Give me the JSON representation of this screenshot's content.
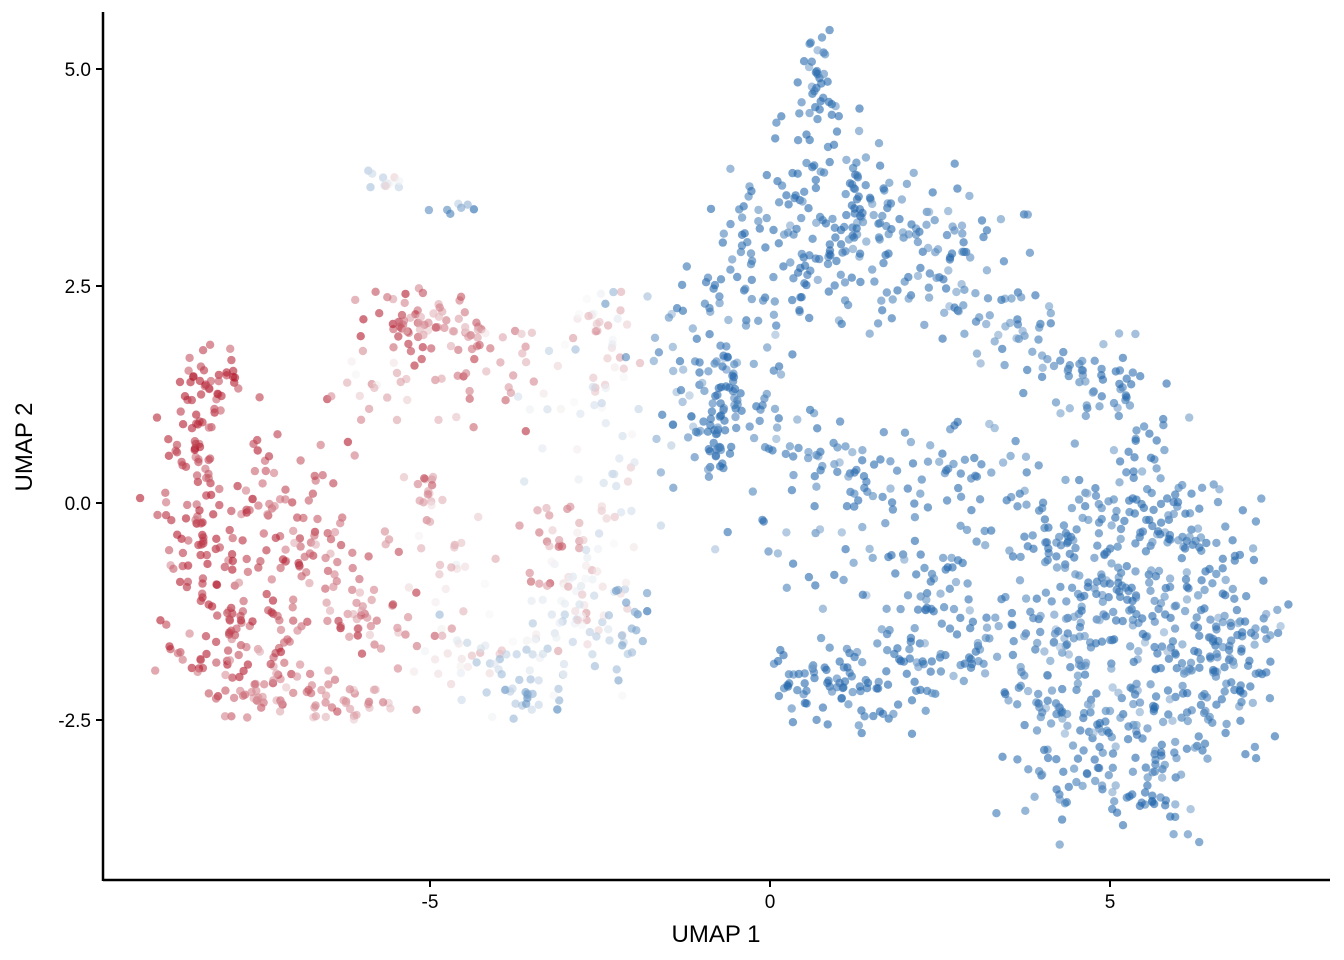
{
  "chart_data": {
    "type": "scatter",
    "title": "",
    "xlabel": "UMAP 1",
    "ylabel": "UMAP 2",
    "xlim": [
      -9.8,
      8.2
    ],
    "ylim": [
      -4.35,
      5.65
    ],
    "x_ticks": [
      -5,
      0,
      5
    ],
    "x_tick_labels": [
      "-5",
      "0",
      "5"
    ],
    "y_ticks": [
      5.0,
      2.5,
      0.0,
      -2.5
    ],
    "y_tick_labels": [
      "5.0",
      "2.5",
      "0.0",
      "-2.5"
    ],
    "grid": false,
    "legend": "none",
    "point_alpha": 0.6,
    "color_scale": {
      "low_color": "#b2182b",
      "mid_color": "#f7f7f7",
      "high_color": "#2166ac",
      "description": "diverging red-white-blue gradient along UMAP 1"
    },
    "clusters": [
      {
        "cx": -8.2,
        "cy": 1.4,
        "sx": 0.25,
        "sy": 0.25,
        "n": 40,
        "color": 0.05
      },
      {
        "cx": -8.5,
        "cy": 0.7,
        "sx": 0.2,
        "sy": 0.25,
        "n": 30,
        "color": 0.05
      },
      {
        "cx": -8.4,
        "cy": -0.5,
        "sx": 0.35,
        "sy": 0.55,
        "n": 70,
        "color": 0.08
      },
      {
        "cx": -7.8,
        "cy": -1.6,
        "sx": 0.5,
        "sy": 0.4,
        "n": 70,
        "color": 0.1
      },
      {
        "cx": -7.2,
        "cy": -2.1,
        "sx": 0.5,
        "sy": 0.2,
        "n": 50,
        "color": 0.18
      },
      {
        "cx": -7.2,
        "cy": -0.2,
        "sx": 0.5,
        "sy": 0.5,
        "n": 70,
        "color": 0.12
      },
      {
        "cx": -6.4,
        "cy": -0.8,
        "sx": 0.45,
        "sy": 0.45,
        "n": 50,
        "color": 0.18
      },
      {
        "cx": -6.2,
        "cy": -2.3,
        "sx": 0.5,
        "sy": 0.1,
        "n": 25,
        "color": 0.28
      },
      {
        "cx": -5.7,
        "cy": -1.4,
        "sx": 0.35,
        "sy": 0.25,
        "n": 25,
        "color": 0.25
      },
      {
        "cx": -5.5,
        "cy": 2.0,
        "sx": 0.25,
        "sy": 0.3,
        "n": 35,
        "color": 0.1
      },
      {
        "cx": -4.9,
        "cy": 2.05,
        "sx": 0.3,
        "sy": 0.15,
        "n": 25,
        "color": 0.28
      },
      {
        "cx": -4.4,
        "cy": 1.9,
        "sx": 0.25,
        "sy": 0.25,
        "n": 20,
        "color": 0.2
      },
      {
        "cx": -4.5,
        "cy": 1.3,
        "sx": 0.4,
        "sy": 0.3,
        "n": 12,
        "color": 0.22
      },
      {
        "cx": -5.8,
        "cy": 1.2,
        "sx": 0.45,
        "sy": 0.3,
        "n": 15,
        "color": 0.3
      },
      {
        "cx": -3.8,
        "cy": 1.6,
        "sx": 0.3,
        "sy": 0.3,
        "n": 15,
        "color": 0.32
      },
      {
        "cx": -5.0,
        "cy": 0.1,
        "sx": 0.15,
        "sy": 0.2,
        "n": 15,
        "color": 0.28
      },
      {
        "cx": -4.6,
        "cy": -0.8,
        "sx": 0.35,
        "sy": 0.35,
        "n": 20,
        "color": 0.4
      },
      {
        "cx": -4.5,
        "cy": -1.7,
        "sx": 0.3,
        "sy": 0.25,
        "n": 20,
        "color": 0.45
      },
      {
        "cx": -3.8,
        "cy": -1.8,
        "sx": 0.4,
        "sy": 0.3,
        "n": 30,
        "color": 0.62
      },
      {
        "cx": -3.5,
        "cy": -2.2,
        "sx": 0.4,
        "sy": 0.1,
        "n": 15,
        "color": 0.72
      },
      {
        "cx": -3.2,
        "cy": -0.6,
        "sx": 0.35,
        "sy": 0.4,
        "n": 30,
        "color": 0.32
      },
      {
        "cx": -3.0,
        "cy": -1.4,
        "sx": 0.35,
        "sy": 0.35,
        "n": 30,
        "color": 0.55
      },
      {
        "cx": -2.5,
        "cy": -1.0,
        "sx": 0.3,
        "sy": 0.5,
        "n": 35,
        "color": 0.52
      },
      {
        "cx": -2.4,
        "cy": 2.0,
        "sx": 0.3,
        "sy": 0.35,
        "n": 30,
        "color": 0.42
      },
      {
        "cx": -2.8,
        "cy": 1.2,
        "sx": 0.4,
        "sy": 0.4,
        "n": 20,
        "color": 0.55
      },
      {
        "cx": -2.3,
        "cy": 0.3,
        "sx": 0.3,
        "sy": 0.4,
        "n": 15,
        "color": 0.58
      },
      {
        "cx": -2.2,
        "cy": -1.5,
        "sx": 0.2,
        "sy": 0.3,
        "n": 20,
        "color": 0.8
      },
      {
        "cx": -5.6,
        "cy": 3.7,
        "sx": 0.15,
        "sy": 0.08,
        "n": 12,
        "color": 0.6
      },
      {
        "cx": -4.7,
        "cy": 3.4,
        "sx": 0.15,
        "sy": 0.08,
        "n": 7,
        "color": 0.9
      },
      {
        "cx": -1.2,
        "cy": 1.6,
        "sx": 0.5,
        "sy": 0.8,
        "n": 25,
        "color": 0.78
      },
      {
        "cx": -0.8,
        "cy": 1.6,
        "sx": 0.4,
        "sy": 0.5,
        "n": 60,
        "color": 0.96
      },
      {
        "cx": -0.8,
        "cy": 0.8,
        "sx": 0.2,
        "sy": 0.3,
        "n": 40,
        "color": 0.98
      },
      {
        "cx": -0.1,
        "cy": 0.9,
        "sx": 0.3,
        "sy": 0.5,
        "n": 30,
        "color": 0.95
      },
      {
        "cx": -0.2,
        "cy": 3.1,
        "sx": 0.5,
        "sy": 0.5,
        "n": 40,
        "color": 0.95
      },
      {
        "cx": 0.7,
        "cy": 2.9,
        "sx": 0.6,
        "sy": 0.5,
        "n": 90,
        "color": 0.98
      },
      {
        "cx": 0.75,
        "cy": 4.85,
        "sx": 0.2,
        "sy": 0.25,
        "n": 30,
        "color": 0.99
      },
      {
        "cx": 0.8,
        "cy": 4.1,
        "sx": 0.35,
        "sy": 0.3,
        "n": 30,
        "color": 0.97
      },
      {
        "cx": 1.5,
        "cy": 3.3,
        "sx": 0.5,
        "sy": 0.35,
        "n": 60,
        "color": 0.97
      },
      {
        "cx": 2.5,
        "cy": 2.8,
        "sx": 0.45,
        "sy": 0.45,
        "n": 50,
        "color": 0.96
      },
      {
        "cx": 3.2,
        "cy": 2.3,
        "sx": 0.4,
        "sy": 0.3,
        "n": 25,
        "color": 0.93
      },
      {
        "cx": 3.6,
        "cy": 2.0,
        "sx": 0.3,
        "sy": 0.25,
        "n": 20,
        "color": 0.9
      },
      {
        "cx": 4.4,
        "cy": 1.6,
        "sx": 0.4,
        "sy": 0.3,
        "n": 30,
        "color": 0.93
      },
      {
        "cx": 5.0,
        "cy": 1.2,
        "sx": 0.3,
        "sy": 0.3,
        "n": 25,
        "color": 0.95
      },
      {
        "cx": 5.4,
        "cy": 0.6,
        "sx": 0.35,
        "sy": 0.35,
        "n": 30,
        "color": 0.96
      },
      {
        "cx": 0.9,
        "cy": 0.5,
        "sx": 0.4,
        "sy": 0.3,
        "n": 25,
        "color": 0.96
      },
      {
        "cx": 1.6,
        "cy": 0.3,
        "sx": 0.4,
        "sy": 0.3,
        "n": 25,
        "color": 0.97
      },
      {
        "cx": 2.6,
        "cy": 0.3,
        "sx": 0.4,
        "sy": 0.4,
        "n": 25,
        "color": 0.94
      },
      {
        "cx": 3.5,
        "cy": 0.5,
        "sx": 0.3,
        "sy": 0.3,
        "n": 15,
        "color": 0.92
      },
      {
        "cx": 0.5,
        "cy": -0.5,
        "sx": 0.35,
        "sy": 0.35,
        "n": 15,
        "color": 0.95
      },
      {
        "cx": 1.5,
        "cy": -0.7,
        "sx": 0.35,
        "sy": 0.4,
        "n": 15,
        "color": 0.96
      },
      {
        "cx": 0.3,
        "cy": -2.0,
        "sx": 0.3,
        "sy": 0.2,
        "n": 25,
        "color": 0.99
      },
      {
        "cx": 1.2,
        "cy": -2.0,
        "sx": 0.5,
        "sy": 0.3,
        "n": 50,
        "color": 0.98
      },
      {
        "cx": 2.2,
        "cy": -1.9,
        "sx": 0.5,
        "sy": 0.35,
        "n": 45,
        "color": 0.97
      },
      {
        "cx": 2.5,
        "cy": -0.9,
        "sx": 0.45,
        "sy": 0.4,
        "n": 40,
        "color": 0.96
      },
      {
        "cx": 3.3,
        "cy": -1.5,
        "sx": 0.5,
        "sy": 0.35,
        "n": 40,
        "color": 0.93
      },
      {
        "cx": 4.0,
        "cy": -0.4,
        "sx": 0.4,
        "sy": 0.4,
        "n": 30,
        "color": 0.95
      },
      {
        "cx": 4.8,
        "cy": -0.6,
        "sx": 0.45,
        "sy": 0.45,
        "n": 60,
        "color": 0.96
      },
      {
        "cx": 5.6,
        "cy": -0.3,
        "sx": 0.5,
        "sy": 0.45,
        "n": 60,
        "color": 0.97
      },
      {
        "cx": 6.4,
        "cy": -0.6,
        "sx": 0.45,
        "sy": 0.4,
        "n": 45,
        "color": 0.97
      },
      {
        "cx": 5.2,
        "cy": -1.3,
        "sx": 0.5,
        "sy": 0.3,
        "n": 60,
        "color": 0.95
      },
      {
        "cx": 6.2,
        "cy": -1.6,
        "sx": 0.5,
        "sy": 0.3,
        "n": 60,
        "color": 0.97
      },
      {
        "cx": 7.0,
        "cy": -1.5,
        "sx": 0.3,
        "sy": 0.3,
        "n": 30,
        "color": 0.96
      },
      {
        "cx": 4.3,
        "cy": -1.8,
        "sx": 0.4,
        "sy": 0.35,
        "n": 35,
        "color": 0.9
      },
      {
        "cx": 4.8,
        "cy": -2.6,
        "sx": 0.5,
        "sy": 0.4,
        "n": 70,
        "color": 0.96
      },
      {
        "cx": 5.8,
        "cy": -2.5,
        "sx": 0.5,
        "sy": 0.4,
        "n": 60,
        "color": 0.97
      },
      {
        "cx": 6.8,
        "cy": -2.3,
        "sx": 0.35,
        "sy": 0.35,
        "n": 35,
        "color": 0.97
      },
      {
        "cx": 4.3,
        "cy": -3.2,
        "sx": 0.3,
        "sy": 0.25,
        "n": 25,
        "color": 0.95
      },
      {
        "cx": 5.6,
        "cy": -3.4,
        "sx": 0.4,
        "sy": 0.2,
        "n": 25,
        "color": 0.96
      },
      {
        "cx": 4.0,
        "cy": -2.4,
        "sx": 0.25,
        "sy": 0.2,
        "n": 15,
        "color": 0.96
      }
    ]
  }
}
